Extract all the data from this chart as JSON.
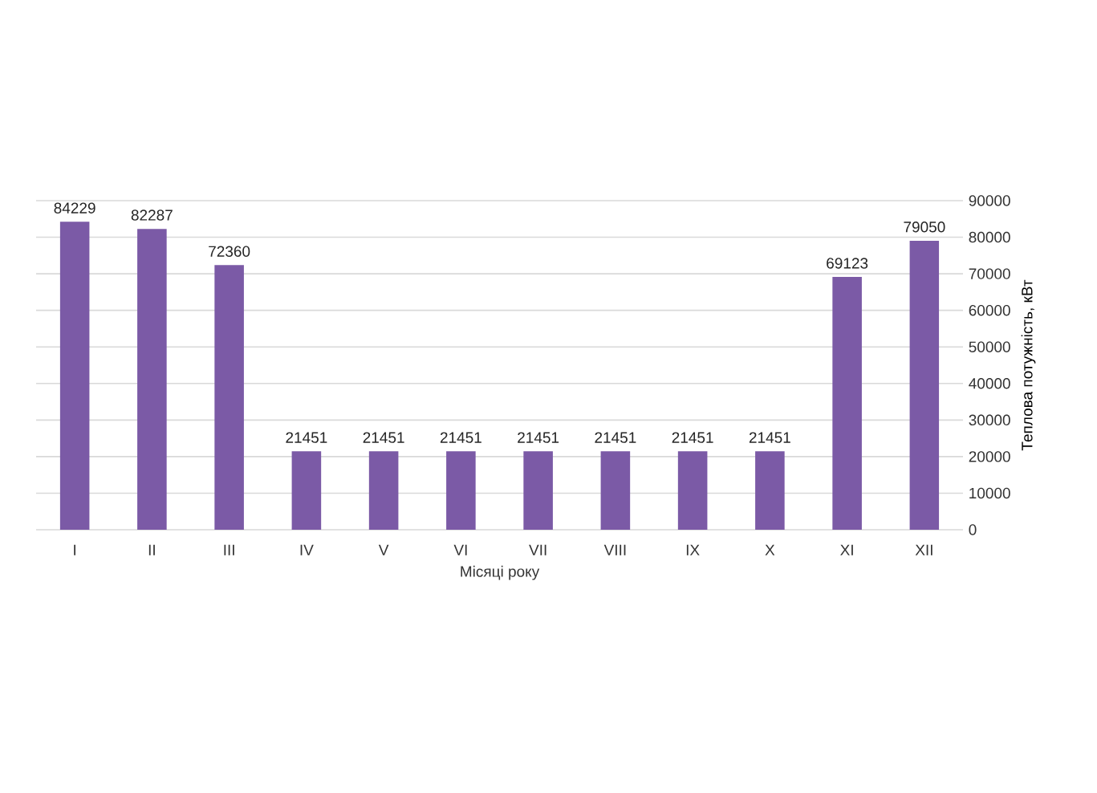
{
  "chart_data": {
    "type": "bar",
    "xlabel": "Місяці року",
    "ylabel": "Теплова потужність, кВт",
    "categories": [
      "I",
      "II",
      "III",
      "IV",
      "V",
      "VI",
      "VII",
      "VIII",
      "IX",
      "X",
      "XI",
      "XII"
    ],
    "values": [
      84229,
      82287,
      72360,
      21451,
      21451,
      21451,
      21451,
      21451,
      21451,
      21451,
      69123,
      79050
    ],
    "color": "#7b5aa6",
    "ylim": [
      0,
      90000
    ],
    "yticks": [
      0,
      10000,
      20000,
      30000,
      40000,
      50000,
      60000,
      70000,
      80000,
      90000
    ],
    "grid": "y",
    "data_labels": true
  }
}
